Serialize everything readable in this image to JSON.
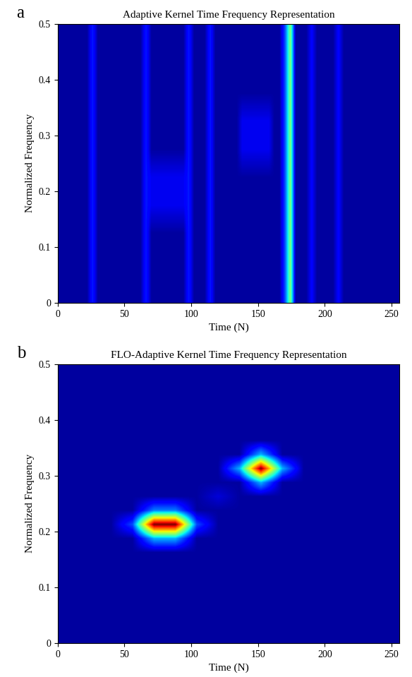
{
  "chart_data": [
    {
      "type": "heatmap",
      "panel_label": "a",
      "title": "Adaptive Kernel Time Frequency Representation",
      "x_label": "Time (N)",
      "y_label": "Normalized Frequency",
      "xlim": [
        0,
        256
      ],
      "ylim": [
        0,
        0.5
      ],
      "xticks": [
        0,
        50,
        100,
        150,
        200,
        250
      ],
      "yticks": [
        0,
        0.1,
        0.2,
        0.3,
        0.4,
        0.5
      ],
      "zlim": [
        0,
        100
      ],
      "cells": [
        [
          3,
          3,
          3,
          3,
          3,
          3,
          15,
          3,
          3,
          3,
          3,
          3,
          3,
          3,
          3,
          3,
          15,
          3,
          3,
          3,
          3,
          3,
          3,
          3,
          15,
          3,
          3,
          3,
          15,
          3,
          3,
          3,
          3,
          3,
          3,
          3,
          3,
          3,
          3,
          3,
          3,
          3,
          20,
          50,
          3,
          3,
          3,
          12,
          3,
          3,
          3,
          3,
          12,
          3,
          3,
          3,
          3,
          3,
          3,
          3,
          3,
          3,
          3,
          3
        ],
        [
          3,
          3,
          3,
          3,
          3,
          3,
          15,
          3,
          3,
          3,
          3,
          3,
          3,
          3,
          3,
          3,
          15,
          3,
          3,
          3,
          3,
          3,
          3,
          3,
          15,
          3,
          3,
          3,
          15,
          3,
          3,
          3,
          3,
          3,
          3,
          3,
          3,
          3,
          3,
          3,
          3,
          3,
          20,
          50,
          3,
          3,
          3,
          12,
          3,
          3,
          3,
          3,
          12,
          3,
          3,
          3,
          3,
          3,
          3,
          3,
          3,
          3,
          3,
          3
        ],
        [
          3,
          3,
          3,
          3,
          3,
          3,
          15,
          3,
          3,
          3,
          3,
          3,
          3,
          3,
          3,
          3,
          15,
          3,
          3,
          3,
          3,
          3,
          3,
          3,
          15,
          3,
          3,
          3,
          15,
          3,
          3,
          3,
          3,
          3,
          3,
          3,
          3,
          3,
          3,
          3,
          3,
          3,
          20,
          50,
          3,
          3,
          3,
          12,
          3,
          3,
          3,
          3,
          12,
          3,
          3,
          3,
          3,
          3,
          3,
          3,
          3,
          3,
          3,
          3
        ],
        [
          3,
          3,
          3,
          3,
          3,
          3,
          15,
          3,
          3,
          3,
          3,
          3,
          3,
          3,
          3,
          3,
          15,
          10,
          10,
          10,
          10,
          10,
          10,
          10,
          15,
          3,
          3,
          3,
          15,
          3,
          3,
          3,
          3,
          3,
          3,
          3,
          3,
          3,
          3,
          3,
          3,
          3,
          20,
          50,
          3,
          3,
          3,
          12,
          3,
          3,
          3,
          3,
          12,
          3,
          3,
          3,
          3,
          3,
          3,
          3,
          3,
          3,
          3,
          3
        ],
        [
          3,
          3,
          3,
          3,
          3,
          3,
          15,
          3,
          3,
          3,
          3,
          3,
          3,
          3,
          3,
          3,
          15,
          10,
          10,
          10,
          10,
          10,
          10,
          10,
          15,
          3,
          3,
          3,
          15,
          3,
          3,
          3,
          3,
          3,
          3,
          3,
          3,
          3,
          3,
          3,
          3,
          3,
          20,
          50,
          3,
          3,
          3,
          12,
          3,
          3,
          3,
          3,
          12,
          3,
          3,
          3,
          3,
          3,
          3,
          3,
          3,
          3,
          3,
          3
        ],
        [
          3,
          3,
          3,
          3,
          3,
          3,
          15,
          3,
          3,
          3,
          3,
          3,
          3,
          3,
          3,
          3,
          15,
          3,
          3,
          3,
          3,
          3,
          3,
          3,
          15,
          3,
          3,
          3,
          15,
          3,
          3,
          3,
          3,
          3,
          10,
          10,
          10,
          10,
          10,
          10,
          3,
          3,
          20,
          50,
          3,
          3,
          3,
          12,
          3,
          3,
          3,
          3,
          12,
          3,
          3,
          3,
          3,
          3,
          3,
          3,
          3,
          3,
          3,
          3
        ],
        [
          3,
          3,
          3,
          3,
          3,
          3,
          15,
          3,
          3,
          3,
          3,
          3,
          3,
          3,
          3,
          3,
          15,
          3,
          3,
          3,
          3,
          3,
          3,
          3,
          15,
          3,
          3,
          3,
          15,
          3,
          3,
          3,
          3,
          3,
          10,
          10,
          10,
          10,
          10,
          10,
          3,
          3,
          20,
          50,
          3,
          3,
          3,
          12,
          3,
          3,
          3,
          3,
          12,
          3,
          3,
          3,
          3,
          3,
          3,
          3,
          3,
          3,
          3,
          3
        ],
        [
          3,
          3,
          3,
          3,
          3,
          3,
          15,
          3,
          3,
          3,
          3,
          3,
          3,
          3,
          3,
          3,
          15,
          3,
          3,
          3,
          3,
          3,
          3,
          3,
          15,
          3,
          3,
          3,
          15,
          3,
          3,
          3,
          3,
          3,
          3,
          3,
          3,
          3,
          3,
          3,
          3,
          3,
          20,
          50,
          3,
          3,
          3,
          12,
          3,
          3,
          3,
          3,
          12,
          3,
          3,
          3,
          3,
          3,
          3,
          3,
          3,
          3,
          3,
          3
        ],
        [
          3,
          3,
          3,
          3,
          3,
          3,
          15,
          3,
          3,
          3,
          3,
          3,
          3,
          3,
          3,
          3,
          15,
          3,
          3,
          3,
          3,
          3,
          3,
          3,
          15,
          3,
          3,
          3,
          15,
          3,
          3,
          3,
          3,
          3,
          3,
          3,
          3,
          3,
          3,
          3,
          3,
          3,
          20,
          50,
          3,
          3,
          3,
          12,
          3,
          3,
          3,
          3,
          12,
          3,
          3,
          3,
          3,
          3,
          3,
          3,
          3,
          3,
          3,
          3
        ],
        [
          3,
          3,
          3,
          3,
          3,
          3,
          15,
          3,
          3,
          3,
          3,
          3,
          3,
          3,
          3,
          3,
          15,
          3,
          3,
          3,
          3,
          3,
          3,
          3,
          15,
          3,
          3,
          3,
          15,
          3,
          3,
          3,
          3,
          3,
          3,
          3,
          3,
          3,
          3,
          3,
          3,
          3,
          20,
          50,
          3,
          3,
          3,
          12,
          3,
          3,
          3,
          3,
          12,
          3,
          3,
          3,
          3,
          3,
          3,
          3,
          3,
          3,
          3,
          3
        ]
      ]
    },
    {
      "type": "heatmap",
      "panel_label": "b",
      "title": "FLO-Adaptive Kernel Time Frequency Representation",
      "x_label": "Time (N)",
      "y_label": "Normalized Frequency",
      "xlim": [
        0,
        256
      ],
      "ylim": [
        0,
        0.5
      ],
      "xticks": [
        0,
        50,
        100,
        150,
        200,
        250
      ],
      "yticks": [
        0,
        0.1,
        0.2,
        0.3,
        0.4,
        0.5
      ],
      "zlim": [
        0,
        100
      ],
      "cells": [
        [
          3,
          3,
          3,
          3,
          3,
          3,
          3,
          3,
          3,
          3,
          3,
          3,
          3,
          3,
          3,
          3
        ],
        [
          3,
          3,
          3,
          3,
          3,
          3,
          3,
          3,
          3,
          3,
          3,
          3,
          3,
          3,
          3,
          3
        ],
        [
          3,
          3,
          3,
          3,
          3,
          3,
          3,
          3,
          3,
          3,
          3,
          3,
          3,
          3,
          3,
          3
        ],
        [
          3,
          3,
          3,
          3,
          3,
          3,
          3,
          3,
          3,
          3,
          3,
          3,
          3,
          3,
          3,
          3
        ],
        [
          3,
          3,
          3,
          3,
          3,
          3,
          3,
          3,
          3,
          3,
          3,
          3,
          3,
          3,
          3,
          3
        ],
        [
          3,
          3,
          3,
          3,
          3,
          3,
          3,
          3,
          3,
          3,
          3,
          3,
          3,
          3,
          3,
          3
        ],
        [
          3,
          3,
          3,
          3,
          3,
          3,
          3,
          3,
          3,
          3,
          3,
          3,
          3,
          3,
          3,
          3
        ],
        [
          3,
          3,
          3,
          3,
          30,
          30,
          3,
          3,
          3,
          3,
          3,
          3,
          3,
          3,
          3,
          3
        ],
        [
          3,
          3,
          3,
          20,
          100,
          100,
          20,
          3,
          3,
          3,
          3,
          3,
          3,
          3,
          3,
          3
        ],
        [
          3,
          3,
          3,
          3,
          25,
          25,
          3,
          3,
          3,
          3,
          3,
          3,
          3,
          3,
          3,
          3
        ],
        [
          3,
          3,
          3,
          3,
          3,
          3,
          3,
          8,
          3,
          3,
          3,
          3,
          3,
          3,
          3,
          3
        ],
        [
          3,
          3,
          3,
          3,
          3,
          3,
          3,
          3,
          3,
          30,
          3,
          3,
          3,
          3,
          3,
          3
        ],
        [
          3,
          3,
          3,
          3,
          3,
          3,
          3,
          3,
          30,
          100,
          30,
          3,
          3,
          3,
          3,
          3
        ],
        [
          3,
          3,
          3,
          3,
          3,
          3,
          3,
          3,
          3,
          30,
          3,
          3,
          3,
          3,
          3,
          3
        ],
        [
          3,
          3,
          3,
          3,
          3,
          3,
          3,
          3,
          3,
          3,
          3,
          3,
          3,
          3,
          3,
          3
        ],
        [
          3,
          3,
          3,
          3,
          3,
          3,
          3,
          3,
          3,
          3,
          3,
          3,
          3,
          3,
          3,
          3
        ],
        [
          3,
          3,
          3,
          3,
          3,
          3,
          3,
          3,
          3,
          3,
          3,
          3,
          3,
          3,
          3,
          3
        ],
        [
          3,
          3,
          3,
          3,
          3,
          3,
          3,
          3,
          3,
          3,
          3,
          3,
          3,
          3,
          3,
          3
        ],
        [
          3,
          3,
          3,
          3,
          3,
          3,
          3,
          3,
          3,
          3,
          3,
          3,
          3,
          3,
          3,
          3
        ],
        [
          3,
          3,
          3,
          3,
          3,
          3,
          3,
          3,
          3,
          3,
          3,
          3,
          3,
          3,
          3,
          3
        ]
      ]
    }
  ]
}
